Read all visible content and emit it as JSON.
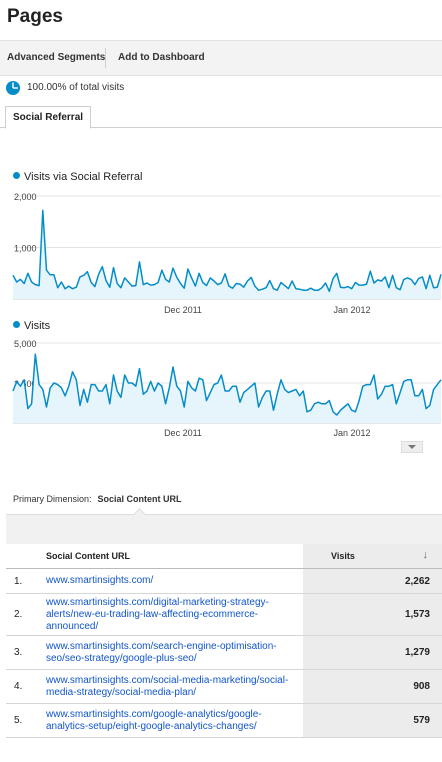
{
  "page": {
    "title": "Pages"
  },
  "toolbar": {
    "advanced_segments": "Advanced Segments",
    "add_to_dashboard": "Add to Dashboard"
  },
  "segment": {
    "text": "100.00% of total visits",
    "percent": 100
  },
  "tab": {
    "label": "Social Referral"
  },
  "colors": {
    "series": "#058dc7",
    "fill": "#e6f4fb",
    "link": "#1155cc"
  },
  "chart_data": [
    {
      "type": "area",
      "series": [
        {
          "name": "Visits via Social Referral",
          "values": [
            460,
            330,
            380,
            300,
            500,
            330,
            280,
            260,
            1720,
            560,
            470,
            470,
            220,
            330,
            200,
            250,
            200,
            230,
            430,
            460,
            530,
            320,
            240,
            480,
            630,
            360,
            230,
            610,
            300,
            220,
            410,
            330,
            250,
            260,
            720,
            280,
            310,
            270,
            280,
            320,
            560,
            380,
            330,
            600,
            420,
            300,
            210,
            580,
            410,
            250,
            500,
            320,
            260,
            410,
            350,
            280,
            310,
            490,
            250,
            210,
            300,
            290,
            230,
            350,
            420,
            250,
            170,
            190,
            220,
            360,
            200,
            170,
            320,
            260,
            200,
            350,
            200,
            190,
            170,
            170,
            210,
            170,
            170,
            220,
            310,
            150,
            400,
            500,
            230,
            220,
            240,
            200,
            320,
            270,
            270,
            290,
            540,
            310,
            370,
            350,
            430,
            220,
            460,
            220,
            180,
            380,
            410,
            380,
            280,
            400,
            430,
            200,
            460,
            220,
            230,
            480
          ]
        }
      ],
      "y_ticks": [
        "2,000",
        "1,000"
      ],
      "ylim": [
        0,
        2000
      ],
      "x_ticks": [
        "Dec 2011",
        "Jan 2012"
      ]
    },
    {
      "type": "area",
      "series": [
        {
          "name": "Visits",
          "values": [
            2000,
            2580,
            2300,
            2700,
            900,
            1200,
            4300,
            2400,
            2100,
            1000,
            2200,
            2500,
            2400,
            2200,
            1700,
            2300,
            3200,
            2700,
            1100,
            2100,
            1300,
            2400,
            2400,
            2000,
            2000,
            2400,
            1200,
            3000,
            2000,
            1600,
            3000,
            2500,
            2500,
            2300,
            3400,
            1800,
            2000,
            2600,
            2000,
            2500,
            2300,
            1200,
            2200,
            3500,
            2300,
            2000,
            1000,
            2600,
            2200,
            2000,
            2800,
            2700,
            1400,
            1900,
            2400,
            2500,
            3000,
            2000,
            2000,
            2300,
            2300,
            1300,
            1900,
            2100,
            2300,
            2500,
            1000,
            1600,
            2000,
            2000,
            800,
            1800,
            2700,
            2100,
            1900,
            2000,
            2100,
            1700,
            2000,
            700,
            800,
            1200,
            1300,
            1200,
            1200,
            1400,
            700,
            500,
            800,
            1000,
            1200,
            800,
            700,
            1400,
            2300,
            2400,
            2400,
            3000,
            1500,
            1800,
            2300,
            2300,
            2400,
            1200,
            1900,
            2600,
            2700,
            2700,
            1700,
            1700,
            2100,
            900,
            1100,
            2100,
            2400,
            2700
          ]
        }
      ],
      "y_ticks": [
        "5,000",
        "2,500"
      ],
      "ylim": [
        0,
        5000
      ],
      "x_ticks": [
        "Dec 2011",
        "Jan 2012"
      ]
    }
  ],
  "primary_dimension": {
    "label": "Primary Dimension:",
    "value": "Social Content URL"
  },
  "table": {
    "columns": {
      "url": "Social Content URL",
      "visits": "Visits"
    },
    "rows": [
      {
        "index": "1.",
        "url_lines": [
          "www.smartinsights.com/"
        ],
        "visits": "2,262"
      },
      {
        "index": "2.",
        "url_lines": [
          "www.smartinsights.com/digital-marketing-strategy-",
          "alerts/new-eu-trading-law-affecting-ecommerce-",
          "announced/"
        ],
        "visits": "1,573"
      },
      {
        "index": "3.",
        "url_lines": [
          "www.smartinsights.com/search-engine-optimisation-",
          "seo/seo-strategy/google-plus-seo/"
        ],
        "visits": "1,279"
      },
      {
        "index": "4.",
        "url_lines": [
          "www.smartinsights.com/social-media-marketing/social-",
          "media-strategy/social-media-plan/"
        ],
        "visits": "908"
      },
      {
        "index": "5.",
        "url_lines": [
          "www.smartinsights.com/google-analytics/google-",
          "analytics-setup/eight-google-analytics-changes/"
        ],
        "visits": "579"
      }
    ]
  }
}
